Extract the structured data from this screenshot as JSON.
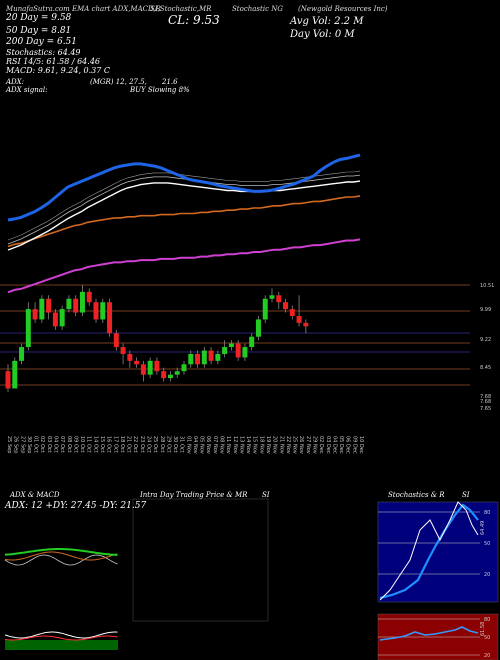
{
  "header": {
    "top_left": "MunafaSutra.com   EMA chart  ADX,MACD,R",
    "top_center": "SI,Stochastic,MR",
    "top_right": "Stochastic NG",
    "company": "(Newgold Resources Inc) ",
    "close_label": "CL: 9.53",
    "avg_vol": "Avg Vol: 2.2  M",
    "day_vol": "Day Vol: 0  M"
  },
  "legend": {
    "ema20": "20 Day = 9.58",
    "ema50": "50 Day = 8.81",
    "ema200": "200 Day = 6.51",
    "stochastics": "Stochastics: 64.49",
    "rsi": "RSI 14/5: 61.58 / 64.46",
    "macd": "MACD: 9.61, 9.24, 0.37 C"
  },
  "adx": {
    "line1_label": "ADX:",
    "line1_value": "(MGR) 12, 27.5,",
    "line1_extra": "21.6",
    "line2_label": "ADX  signal:",
    "line2_value": "BUY Slowing 8%"
  },
  "price_axis": [
    "10.51",
    "9.99",
    "9.22",
    "8.45",
    "7.68",
    "7.68",
    "7.65"
  ],
  "panels": {
    "adx_macd_title": "ADX  & MACD",
    "adx_macd_values": "ADX: 12  +DY: 27.45  -DY: 21.57",
    "intraday_title": "Intra  Day Trading Price  & MR",
    "intraday_si": "SI",
    "stoch_title": "Stochastics & R",
    "stoch_si": "SI",
    "stoch_ticks": [
      "80",
      "50",
      "20"
    ],
    "stoch_value": "64.49",
    "rsi_ticks": [
      "80",
      "50",
      "20"
    ],
    "rsi_value": "61.58"
  },
  "colors": {
    "background": "#000000",
    "up_candle": "#22cc22",
    "down_candle": "#ee2222",
    "ema20": "#1e64e6",
    "ema50": "#ffffff",
    "ema200": "#d2691e",
    "ema_long": "#d040d0",
    "stoch_bg": "#00007d",
    "rsi_bg": "#8b0000",
    "macd_bg": "#006400"
  },
  "chart_data": {
    "type": "line",
    "title": "",
    "x": [
      "25 Sep",
      "26 Sep",
      "27 Sep",
      "30 Sep",
      "01 Oct",
      "02 Oct",
      "03 Oct",
      "04 Oct",
      "07 Oct",
      "08 Oct",
      "09 Oct",
      "10 Oct",
      "11 Oct",
      "14 Oct",
      "15 Oct",
      "16 Oct",
      "17 Oct",
      "18 Oct",
      "21 Oct",
      "22 Oct",
      "23 Oct",
      "24 Oct",
      "25 Oct",
      "28 Oct",
      "29 Oct",
      "30 Oct",
      "31 Oct",
      "01 Nov",
      "04 Nov",
      "05 Nov",
      "06 Nov",
      "07 Nov",
      "08 Nov",
      "11 Nov",
      "12 Nov",
      "13 Nov",
      "14 Nov",
      "15 Nov",
      "18 Nov",
      "19 Nov",
      "20 Nov",
      "21 Nov",
      "22 Nov",
      "25 Nov",
      "26 Nov",
      "27 Nov",
      "29 Nov",
      "02 Dec",
      "03 Dec",
      "04 Dec",
      "05 Dec",
      "06 Dec",
      "09 Dec",
      "10 Dec"
    ],
    "ema_series": [
      {
        "name": "20 Day",
        "values": [
          8.4,
          8.42,
          8.45,
          8.5,
          8.55,
          8.62,
          8.7,
          8.8,
          8.9,
          9.0,
          9.05,
          9.1,
          9.15,
          9.2,
          9.25,
          9.3,
          9.35,
          9.38,
          9.4,
          9.42,
          9.42,
          9.4,
          9.38,
          9.35,
          9.3,
          9.25,
          9.2,
          9.15,
          9.12,
          9.1,
          9.08,
          9.05,
          9.02,
          9.0,
          8.98,
          8.96,
          8.94,
          8.92,
          8.92,
          8.93,
          8.95,
          8.98,
          9.02,
          9.05,
          9.1,
          9.15,
          9.2,
          9.3,
          9.38,
          9.45,
          9.5,
          9.52,
          9.55,
          9.58
        ]
      },
      {
        "name": "50 Day",
        "values": [
          8.0,
          8.03,
          8.06,
          8.1,
          8.14,
          8.18,
          8.22,
          8.27,
          8.32,
          8.37,
          8.41,
          8.45,
          8.5,
          8.54,
          8.58,
          8.62,
          8.66,
          8.7,
          8.73,
          8.75,
          8.77,
          8.78,
          8.79,
          8.79,
          8.79,
          8.78,
          8.77,
          8.76,
          8.75,
          8.74,
          8.73,
          8.72,
          8.71,
          8.7,
          8.7,
          8.69,
          8.69,
          8.69,
          8.69,
          8.69,
          8.7,
          8.7,
          8.71,
          8.72,
          8.73,
          8.74,
          8.75,
          8.76,
          8.77,
          8.78,
          8.79,
          8.8,
          8.8,
          8.81
        ]
      },
      {
        "name": "200 Day",
        "values": [
          6.05,
          6.07,
          6.08,
          6.1,
          6.12,
          6.14,
          6.16,
          6.18,
          6.2,
          6.22,
          6.24,
          6.25,
          6.27,
          6.28,
          6.29,
          6.3,
          6.31,
          6.31,
          6.32,
          6.32,
          6.33,
          6.33,
          6.33,
          6.34,
          6.34,
          6.34,
          6.35,
          6.35,
          6.35,
          6.36,
          6.36,
          6.37,
          6.37,
          6.38,
          6.38,
          6.39,
          6.39,
          6.4,
          6.4,
          6.41,
          6.42,
          6.42,
          6.43,
          6.44,
          6.44,
          6.45,
          6.46,
          6.46,
          6.47,
          6.48,
          6.49,
          6.5,
          6.5,
          6.51
        ]
      }
    ],
    "ylim": [
      5.5,
      10.5
    ],
    "xlabel": "",
    "ylabel": ""
  }
}
